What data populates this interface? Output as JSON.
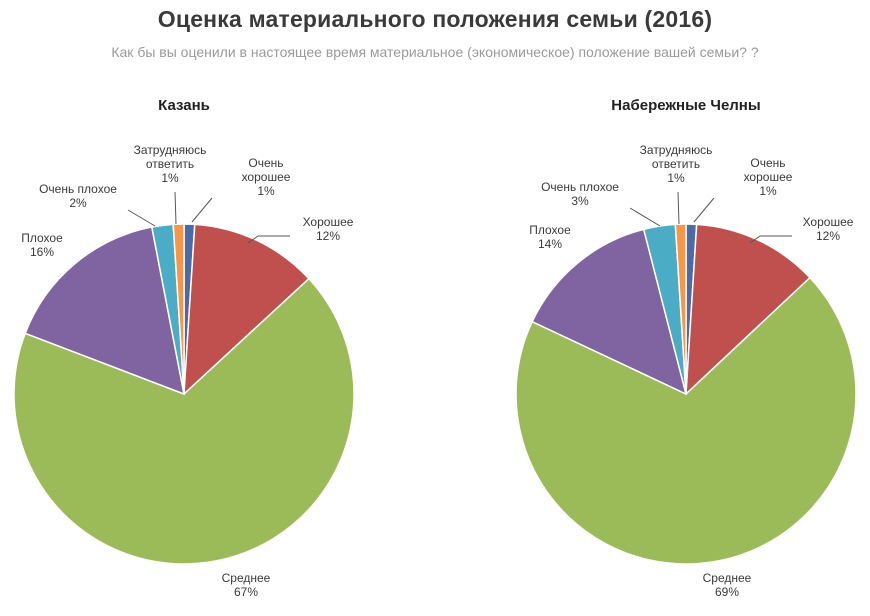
{
  "header": {
    "title": "Оценка материального положения семьи (2016)",
    "subtitle": "Как бы вы оценили в настоящее время материальное (экономическое) положение вашей семьи? ?"
  },
  "chart_data": [
    {
      "type": "pie",
      "title": "Казань",
      "slices": [
        {
          "name": "Очень хорошее",
          "value": 1,
          "value_label": "1%",
          "color": "#4a6aa8",
          "label_lines": [
            "Очень",
            "хорошее",
            "1%"
          ]
        },
        {
          "name": "Хорошее",
          "value": 12,
          "value_label": "12%",
          "color": "#c0504d",
          "label_lines": [
            "Хорошее",
            "12%"
          ]
        },
        {
          "name": "Среднее",
          "value": 67,
          "value_label": "67%",
          "color": "#9bbb59",
          "label_lines": [
            "Среднее",
            "67%"
          ]
        },
        {
          "name": "Плохое",
          "value": 16,
          "value_label": "16%",
          "color": "#8064a2",
          "label_lines": [
            "Плохое",
            "16%"
          ]
        },
        {
          "name": "Очень плохое",
          "value": 2,
          "value_label": "2%",
          "color": "#4bacc6",
          "label_lines": [
            "Очень плохое",
            "2%"
          ]
        },
        {
          "name": "Затрудняюсь ответить",
          "value": 1,
          "value_label": "1%",
          "color": "#f79646",
          "label_lines": [
            "Затрудняюсь",
            "ответить",
            "1%"
          ]
        }
      ]
    },
    {
      "type": "pie",
      "title": "Набережные Челны",
      "slices": [
        {
          "name": "Очень хорошее",
          "value": 1,
          "value_label": "1%",
          "color": "#4a6aa8",
          "label_lines": [
            "Очень",
            "хорошее",
            "1%"
          ]
        },
        {
          "name": "Хорошее",
          "value": 12,
          "value_label": "12%",
          "color": "#c0504d",
          "label_lines": [
            "Хорошее",
            "12%"
          ]
        },
        {
          "name": "Среднее",
          "value": 69,
          "value_label": "69%",
          "color": "#9bbb59",
          "label_lines": [
            "Среднее",
            "69%"
          ]
        },
        {
          "name": "Плохое",
          "value": 14,
          "value_label": "14%",
          "color": "#8064a2",
          "label_lines": [
            "Плохое",
            "14%"
          ]
        },
        {
          "name": "Очень плохое",
          "value": 3,
          "value_label": "3%",
          "color": "#4bacc6",
          "label_lines": [
            "Очень плохое",
            "3%"
          ]
        },
        {
          "name": "Затрудняюсь ответить",
          "value": 1,
          "value_label": "1%",
          "color": "#f79646",
          "label_lines": [
            "Затрудняюсь",
            "ответить",
            "1%"
          ]
        }
      ]
    }
  ]
}
